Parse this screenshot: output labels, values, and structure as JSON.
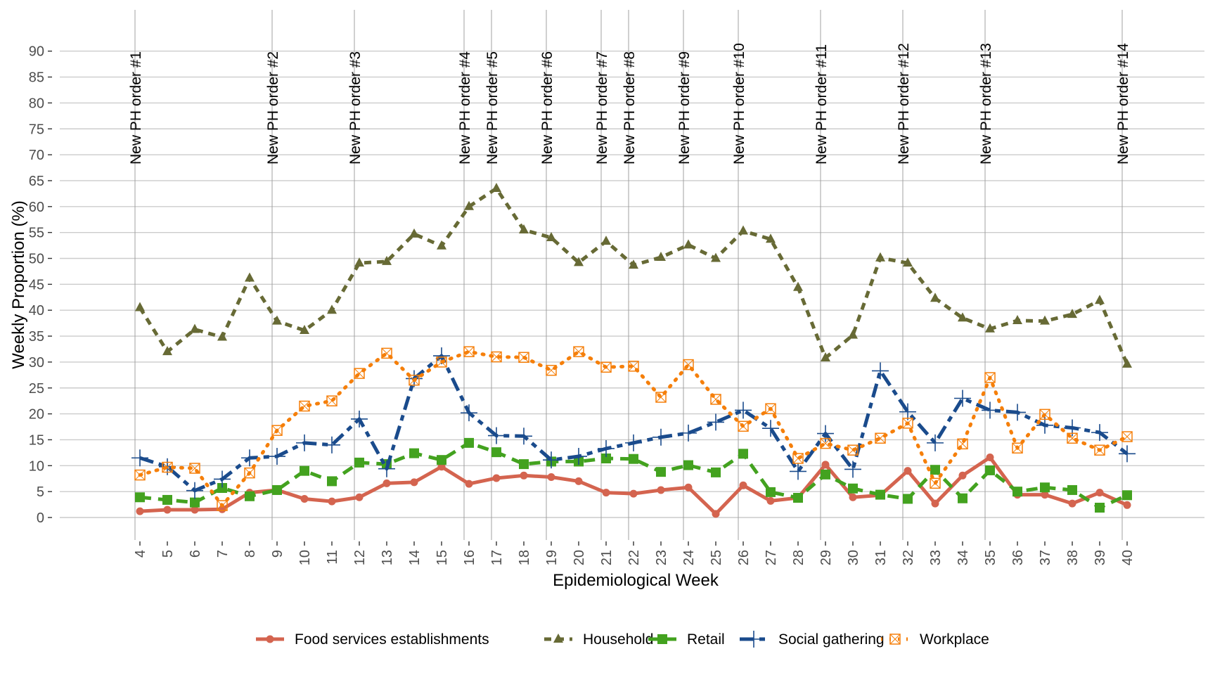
{
  "chart_data": {
    "type": "line",
    "title": "",
    "xlabel": "Epidemiological Week",
    "ylabel": "Weekly Proportion (%)",
    "x": [
      4,
      5,
      6,
      7,
      8,
      9,
      10,
      11,
      12,
      13,
      14,
      15,
      16,
      17,
      18,
      19,
      20,
      21,
      22,
      23,
      24,
      25,
      26,
      27,
      28,
      29,
      30,
      31,
      32,
      33,
      34,
      35,
      36,
      37,
      38,
      39,
      40
    ],
    "yticks": [
      0,
      5,
      10,
      15,
      20,
      25,
      30,
      35,
      40,
      45,
      50,
      55,
      60,
      65,
      70,
      75,
      80,
      85,
      90
    ],
    "ylim": [
      -5,
      90
    ],
    "grid": true,
    "legend_position": "bottom",
    "series": [
      {
        "name": "Food services establishments",
        "color": "#D4644F",
        "marker": "circle",
        "line": "solid",
        "values": [
          1.2,
          1.5,
          1.5,
          1.6,
          4.8,
          5.3,
          3.6,
          3.1,
          3.9,
          6.6,
          6.8,
          9.8,
          6.5,
          7.6,
          8.1,
          7.8,
          7.0,
          4.8,
          4.6,
          5.3,
          5.8,
          0.7,
          6.2,
          3.2,
          3.8,
          10.2,
          3.9,
          4.3,
          9.0,
          2.7,
          8.1,
          11.6,
          4.4,
          4.4,
          2.7,
          4.8,
          2.4
        ]
      },
      {
        "name": "Household",
        "color": "#676A35",
        "marker": "triangle",
        "line": "dashed",
        "values": [
          40.5,
          32.0,
          36.3,
          34.8,
          46.2,
          37.9,
          36.1,
          40.0,
          49.1,
          49.4,
          54.7,
          52.4,
          60.0,
          63.5,
          55.5,
          54.0,
          49.2,
          53.3,
          48.7,
          50.2,
          52.6,
          50.0,
          55.3,
          53.7,
          44.4,
          30.8,
          35.2,
          50.1,
          49.1,
          42.3,
          38.5,
          36.4,
          38.0,
          37.9,
          39.2,
          41.9,
          29.6
        ]
      },
      {
        "name": "Retail",
        "color": "#43A21F",
        "marker": "square",
        "line": "longdash",
        "values": [
          3.9,
          3.4,
          2.9,
          5.7,
          4.1,
          5.3,
          9.0,
          7.0,
          10.6,
          10.3,
          12.4,
          11.1,
          14.4,
          12.6,
          10.3,
          10.8,
          10.8,
          11.4,
          11.3,
          8.8,
          10.1,
          8.7,
          12.3,
          4.9,
          3.8,
          8.3,
          5.6,
          4.4,
          3.6,
          9.2,
          3.7,
          9.1,
          5.0,
          5.8,
          5.3,
          1.9,
          4.3
        ]
      },
      {
        "name": "Social gathering",
        "color": "#1A4B8C",
        "marker": "plus",
        "line": "twodash",
        "values": [
          11.5,
          9.8,
          5.2,
          7.4,
          11.5,
          11.8,
          14.4,
          14.0,
          19.0,
          9.4,
          26.8,
          31.2,
          20.2,
          15.8,
          15.7,
          11.1,
          11.8,
          13.3,
          14.4,
          15.5,
          16.3,
          18.4,
          20.7,
          17.2,
          8.9,
          16.2,
          9.3,
          28.3,
          20.4,
          14.4,
          23.0,
          20.7,
          20.3,
          17.8,
          17.3,
          16.4,
          12.3
        ]
      },
      {
        "name": "Workplace",
        "color": "#F57F0A",
        "marker": "square-x",
        "line": "dotted",
        "values": [
          8.2,
          9.7,
          9.5,
          2.3,
          8.6,
          16.8,
          21.5,
          22.5,
          27.8,
          31.7,
          26.5,
          30.0,
          32.0,
          31.0,
          30.9,
          28.4,
          32.0,
          29.0,
          29.2,
          23.2,
          29.5,
          22.8,
          17.6,
          21.0,
          11.4,
          14.3,
          13.0,
          15.3,
          18.2,
          6.6,
          14.2,
          27.0,
          13.4,
          19.9,
          15.3,
          13.0,
          15.6
        ]
      }
    ],
    "annotations": [
      {
        "week": 4,
        "label": "New PH order #1"
      },
      {
        "week": 9,
        "label": "New PH order #2"
      },
      {
        "week": 12,
        "label": "New PH order #3"
      },
      {
        "week": 16,
        "label": "New PH order #4"
      },
      {
        "week": 17,
        "label": "New PH order #5"
      },
      {
        "week": 19,
        "label": "New PH order #6"
      },
      {
        "week": 21,
        "label": "New PH order #7"
      },
      {
        "week": 22,
        "label": "New PH order #8"
      },
      {
        "week": 24,
        "label": "New PH order #9"
      },
      {
        "week": 26,
        "label": "New PH order #10"
      },
      {
        "week": 29,
        "label": "New PH order #11"
      },
      {
        "week": 32,
        "label": "New PH order #12"
      },
      {
        "week": 35,
        "label": "New PH order #13"
      },
      {
        "week": 40,
        "label": "New PH order #14"
      }
    ]
  }
}
